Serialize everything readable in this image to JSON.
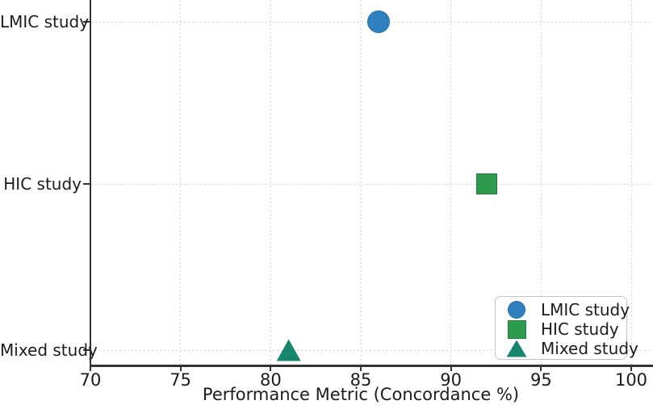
{
  "chart_data": {
    "type": "scatter",
    "title": "",
    "xlabel": "Performance Metric (Concordance %)",
    "ylabel": "",
    "xlim": [
      70,
      100
    ],
    "xticks": [
      70,
      75,
      80,
      85,
      90,
      95,
      100
    ],
    "categories": [
      "LMIC study",
      "HIC study",
      "Mixed study"
    ],
    "grid": true,
    "grid_style": "dotted",
    "background": "#ffffff",
    "axis_color": "#333333",
    "text_color": "#1c1c1c",
    "series": [
      {
        "name": "LMIC study",
        "marker": "circle",
        "color": "#2e80c0",
        "edge_color": "#2a70a8",
        "category": "LMIC study",
        "value": 86
      },
      {
        "name": "HIC study",
        "marker": "square",
        "color": "#2e9b4e",
        "edge_color": "#237a3c",
        "category": "HIC study",
        "value": 92
      },
      {
        "name": "Mixed study",
        "marker": "triangle",
        "color": "#17866c",
        "edge_color": "#116d57",
        "category": "Mixed study",
        "value": 81
      }
    ],
    "legend": {
      "position": "lower right",
      "entries": [
        {
          "label": "LMIC study",
          "marker": "circle",
          "color": "#2e80c0",
          "edge_color": "#2a70a8"
        },
        {
          "label": "HIC study",
          "marker": "square",
          "color": "#2e9b4e",
          "edge_color": "#237a3c"
        },
        {
          "label": "Mixed study",
          "marker": "triangle",
          "color": "#17866c",
          "edge_color": "#116d57"
        }
      ]
    }
  }
}
